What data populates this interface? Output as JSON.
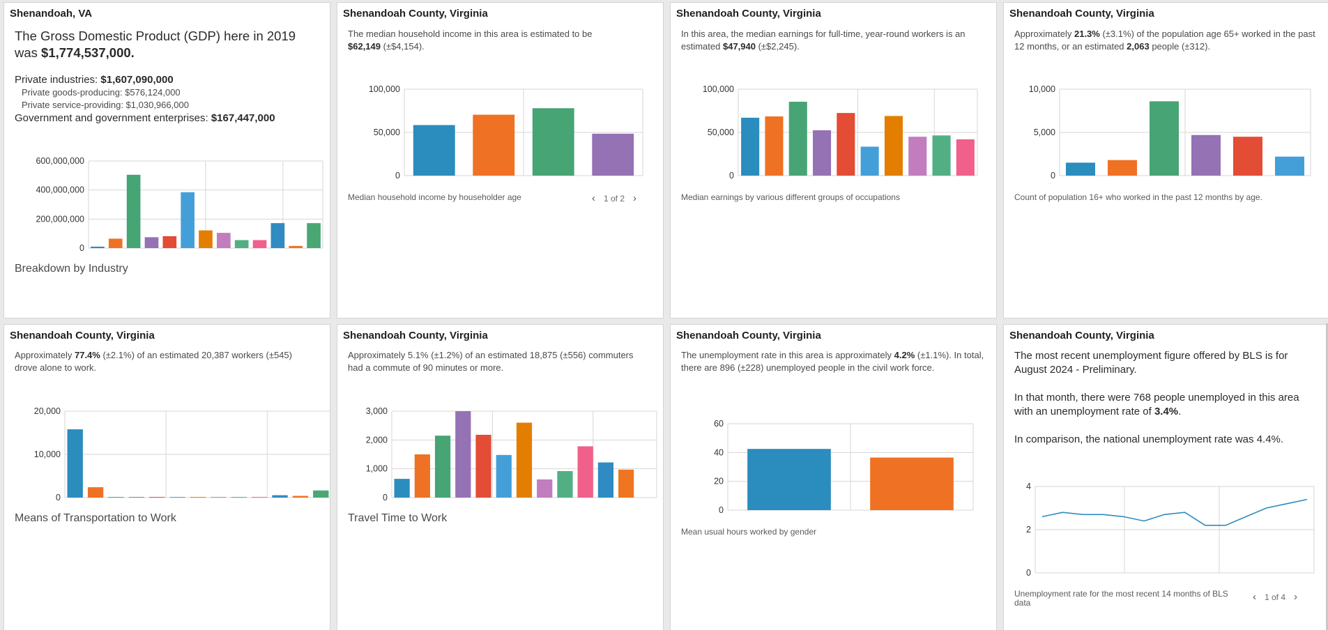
{
  "colors": [
    "#2b8cbe",
    "#ef7124",
    "#47a474",
    "#9472b4",
    "#e34c35",
    "#449fd8",
    "#e37e00",
    "#c17dbe",
    "#52af84",
    "#f0608a",
    "#2f8bc2",
    "#f07521",
    "#4aa774"
  ],
  "cards": [
    {
      "title": "Shenandoah, VA",
      "gdp_prefix": "The Gross Domestic Product (GDP) here in 2019 was ",
      "gdp_value": "$1,774,537,000.",
      "private_label": "Private industries: ",
      "private_value": "$1,607,090,000",
      "goods_text": "Private goods-producing: $576,124,000",
      "service_text": "Private service-providing: $1,030,966,000",
      "gov_label": "Government and government enterprises: ",
      "gov_value": "$167,447,000",
      "caption": "Breakdown by Industry",
      "chart_data": {
        "type": "bar",
        "categories": [
          "1",
          "2",
          "3",
          "4",
          "5",
          "6",
          "7",
          "8",
          "9",
          "10",
          "11",
          "12",
          "13"
        ],
        "values": [
          10000000,
          65000000,
          505000000,
          75000000,
          82000000,
          385000000,
          122000000,
          105000000,
          55000000,
          55000000,
          172000000,
          15000000,
          172000000
        ],
        "ylim": [
          0,
          600000000
        ],
        "yticks": [
          0,
          200000000,
          400000000,
          600000000
        ],
        "ytick_labels": [
          "0",
          "200,000,000",
          "400,000,000",
          "600,000,000"
        ],
        "title": "",
        "xlabel": "",
        "ylabel": ""
      }
    },
    {
      "title": "Shenandoah County, Virginia",
      "desc_prefix": "The median household income in this area is estimated to be ",
      "desc_value": "$62,149",
      "desc_suffix": " (±$4,154).",
      "caption": "Median household income by householder age",
      "pager_text": "1 of 2",
      "chart_data": {
        "type": "bar",
        "categories": [
          "1",
          "2",
          "3",
          "4"
        ],
        "values": [
          58500,
          70500,
          78000,
          48500
        ],
        "ylim": [
          0,
          100000
        ],
        "yticks": [
          0,
          50000,
          100000
        ],
        "ytick_labels": [
          "0",
          "50,000",
          "100,000"
        ],
        "title": "",
        "xlabel": "",
        "ylabel": ""
      }
    },
    {
      "title": "Shenandoah County, Virginia",
      "desc_prefix": "In this area, the median earnings for full-time, year-round workers is an estimated ",
      "desc_value": "$47,940",
      "desc_suffix": " (±$2,245).",
      "caption": "Median earnings by various different groups of occupations",
      "chart_data": {
        "type": "bar",
        "categories": [
          "1",
          "2",
          "3",
          "4",
          "5",
          "6",
          "7",
          "8",
          "9",
          "10"
        ],
        "values": [
          67000,
          68500,
          85500,
          52500,
          72500,
          33500,
          69000,
          45000,
          46500,
          42000
        ],
        "ylim": [
          0,
          100000
        ],
        "yticks": [
          0,
          50000,
          100000
        ],
        "ytick_labels": [
          "0",
          "50,000",
          "100,000"
        ],
        "title": "",
        "xlabel": "",
        "ylabel": ""
      }
    },
    {
      "title": "Shenandoah County, Virginia",
      "desc_a": "Approximately ",
      "desc_b": "21.3%",
      "desc_c": " (±3.1%) of the population age 65+ worked in the past 12 months, or an estimated ",
      "desc_d": "2,063",
      "desc_e": " people (±312).",
      "caption": "Count of population 16+ who worked in the past 12 months by age.",
      "chart_data": {
        "type": "bar",
        "categories": [
          "1",
          "2",
          "3",
          "4",
          "5",
          "6"
        ],
        "values": [
          1500,
          1800,
          8600,
          4700,
          4500,
          2200
        ],
        "ylim": [
          0,
          10000
        ],
        "yticks": [
          0,
          5000,
          10000
        ],
        "ytick_labels": [
          "0",
          "5,000",
          "10,000"
        ],
        "title": "",
        "xlabel": "",
        "ylabel": ""
      }
    },
    {
      "title": "Shenandoah County, Virginia",
      "desc_a": "Approximately ",
      "desc_b": "77.4%",
      "desc_c": " (±2.1%) of an estimated 20,387 workers (±545) drove alone to work.",
      "caption": "Means of Transportation to Work",
      "chart_data": {
        "type": "bar",
        "categories": [
          "1",
          "2",
          "3",
          "4",
          "5",
          "6",
          "7",
          "8",
          "9",
          "10",
          "11",
          "12",
          "13"
        ],
        "values": [
          15800,
          2400,
          150,
          150,
          150,
          150,
          150,
          150,
          150,
          150,
          550,
          400,
          1650
        ],
        "ylim": [
          0,
          20000
        ],
        "yticks": [
          0,
          10000,
          20000
        ],
        "ytick_labels": [
          "0",
          "10,000",
          "20,000"
        ],
        "title": "",
        "xlabel": "",
        "ylabel": ""
      }
    },
    {
      "title": "Shenandoah County, Virginia",
      "desc_text": "Approximately 5.1% (±1.2%) of an estimated 18,875 (±556) commuters had a commute of 90 minutes or more.",
      "caption": "Travel Time to Work",
      "chart_data": {
        "type": "bar",
        "categories": [
          "1",
          "2",
          "3",
          "4",
          "5",
          "6",
          "7",
          "8",
          "9",
          "10",
          "11",
          "12",
          "13"
        ],
        "values": [
          650,
          1500,
          2150,
          3000,
          2180,
          1480,
          2600,
          630,
          920,
          1780,
          1220,
          970,
          0
        ],
        "ylim": [
          0,
          3000
        ],
        "yticks": [
          0,
          1000,
          2000,
          3000
        ],
        "ytick_labels": [
          "0",
          "1,000",
          "2,000",
          "3,000"
        ],
        "title": "",
        "xlabel": "",
        "ylabel": ""
      }
    },
    {
      "title": "Shenandoah County, Virginia",
      "desc_a": "The unemployment rate in this area is approximately ",
      "desc_b": "4.2%",
      "desc_c": " (±1.1%). In total, there are 896 (±228) unemployed people in the civil work force.",
      "caption": "Mean usual hours worked by gender",
      "chart_data": {
        "type": "bar",
        "categories": [
          "1",
          "2"
        ],
        "values": [
          42.5,
          36.5
        ],
        "ylim": [
          0,
          60
        ],
        "yticks": [
          0,
          20,
          40,
          60
        ],
        "ytick_labels": [
          "0",
          "20",
          "40",
          "60"
        ],
        "title": "",
        "xlabel": "",
        "ylabel": ""
      }
    },
    {
      "title": "Shenandoah County, Virginia",
      "para1": "The most recent unemployment figure offered by BLS is for August 2024 - Preliminary.",
      "para2_prefix": "In that month, there were 768 people unemployed in this area with an unemployment rate of ",
      "para2_value": "3.4%",
      "para2_suffix": ".",
      "para3": "In comparison, the national unemployment rate was 4.4%.",
      "caption": "Unemployment rate for the most recent 14 months of BLS data",
      "pager_text": "1 of 4",
      "chart_data": {
        "type": "line",
        "x": [
          1,
          2,
          3,
          4,
          5,
          6,
          7,
          8,
          9,
          10,
          11,
          12,
          13,
          14
        ],
        "values": [
          2.6,
          2.8,
          2.7,
          2.7,
          2.6,
          2.4,
          2.7,
          2.8,
          2.2,
          2.2,
          2.6,
          3.0,
          3.2,
          3.4
        ],
        "ylim": [
          0,
          4
        ],
        "yticks": [
          0,
          2,
          4
        ],
        "ytick_labels": [
          "0",
          "2",
          "4"
        ],
        "title": "",
        "xlabel": "",
        "ylabel": ""
      }
    }
  ]
}
